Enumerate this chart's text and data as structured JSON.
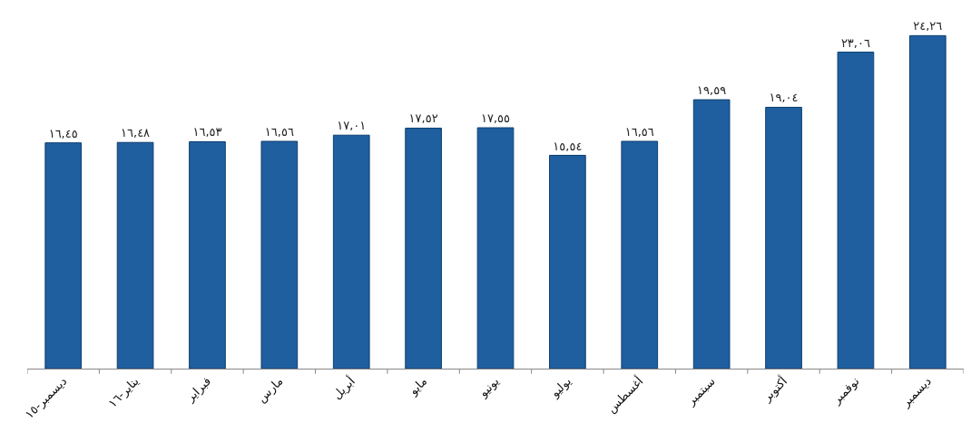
{
  "chart_data": {
    "type": "bar",
    "categories": [
      "ديسمبر-١٥",
      "يناير-١٦",
      "فبراير",
      "مارس",
      "أبريل",
      "مايو",
      "يونيو",
      "يوليو",
      "أغسطس",
      "سبتمبر",
      "أكتوبر",
      "نوفمبر",
      "ديسمبر"
    ],
    "values": [
      16.45,
      16.48,
      16.53,
      16.56,
      17.01,
      17.52,
      17.55,
      15.54,
      16.56,
      19.59,
      19.04,
      23.06,
      24.26
    ],
    "value_labels": [
      "١٦,٤٥",
      "١٦,٤٨",
      "١٦,٥٣",
      "١٦,٥٦",
      "١٧,٠١",
      "١٧,٥٢",
      "١٧,٥٥",
      "١٥,٥٤",
      "١٦,٥٦",
      "١٩,٥٩",
      "١٩,٠٤",
      "٢٣,٠٦",
      "٢٤,٢٦"
    ],
    "color": "#1f5f9f"
  }
}
